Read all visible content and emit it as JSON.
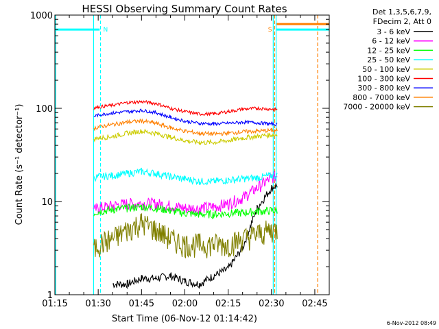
{
  "chart_data": {
    "type": "line",
    "title": "HESSI Observing Summary Count Rates",
    "xlabel": "Start Time (06-Nov-12 01:14:42)",
    "ylabel": "Count Rate (s⁻¹ detector⁻¹)",
    "y_scale": "log",
    "ylim": [
      1,
      1000
    ],
    "xlim_minutes": [
      75,
      170
    ],
    "x_ticks": [
      {
        "min": 75,
        "label": "01:15"
      },
      {
        "min": 90,
        "label": "01:30"
      },
      {
        "min": 105,
        "label": "01:45"
      },
      {
        "min": 120,
        "label": "02:00"
      },
      {
        "min": 135,
        "label": "02:15"
      },
      {
        "min": 150,
        "label": "02:30"
      },
      {
        "min": 165,
        "label": "02:45"
      }
    ],
    "y_ticks": [
      {
        "value": 1,
        "label": "1"
      },
      {
        "value": 10,
        "label": "10"
      },
      {
        "value": 100,
        "label": "100"
      },
      {
        "value": 1000,
        "label": "1000"
      }
    ],
    "legend_header": [
      "Det 1,3,5,6,7,9,",
      "FDecim 2, Att 0"
    ],
    "legend_position": "right",
    "grid": false,
    "x_minutes": [
      88.5,
      90,
      95,
      100,
      105,
      110,
      115,
      120,
      125,
      130,
      135,
      140,
      145,
      150,
      152
    ],
    "series": [
      {
        "name": "3 - 6 keV",
        "color": "#000000",
        "values": [
          null,
          null,
          1.3,
          1.3,
          1.5,
          1.5,
          1.6,
          1.4,
          1.3,
          1.6,
          1.9,
          3.2,
          8.5,
          14,
          15
        ]
      },
      {
        "name": "6 - 12 keV",
        "color": "#ff00ff",
        "values": [
          8,
          8.5,
          9,
          9.5,
          9.5,
          9.5,
          9,
          8.5,
          8.5,
          8.8,
          9.5,
          11,
          14,
          18,
          19
        ]
      },
      {
        "name": "12 - 25 keV",
        "color": "#00ff00",
        "values": [
          7.5,
          7.8,
          8.2,
          8.5,
          8.8,
          8.5,
          8,
          7.5,
          7.3,
          7.3,
          7.5,
          7.6,
          7.8,
          8,
          8
        ]
      },
      {
        "name": "25 - 50 keV",
        "color": "#00ffff",
        "values": [
          18,
          18.5,
          19,
          20,
          21,
          20,
          18.5,
          17.5,
          16.5,
          16.5,
          17,
          17.5,
          18,
          19,
          19
        ]
      },
      {
        "name": "50 - 100 keV",
        "color": "#cccc00",
        "values": [
          47,
          48,
          50,
          54,
          57,
          54,
          49,
          45,
          43,
          43,
          45,
          48,
          50,
          52,
          52
        ]
      },
      {
        "name": "100 - 300 keV",
        "color": "#ff0000",
        "values": [
          100,
          103,
          108,
          115,
          118,
          113,
          100,
          92,
          87,
          87,
          92,
          98,
          100,
          98,
          97
        ]
      },
      {
        "name": "300 - 800 keV",
        "color": "#0000ff",
        "values": [
          82,
          85,
          89,
          92,
          95,
          90,
          80,
          73,
          69,
          68,
          69,
          71,
          70,
          68,
          67
        ]
      },
      {
        "name": "800 - 7000 keV",
        "color": "#ff8000",
        "values": [
          61,
          63,
          67,
          71,
          73,
          69,
          62,
          57,
          54,
          53,
          54,
          56,
          57,
          58,
          58
        ]
      },
      {
        "name": "7000 - 20000 keV",
        "color": "#808000",
        "values": [
          3,
          3.5,
          4,
          5,
          6,
          5,
          4,
          3.5,
          3.5,
          3.5,
          3.5,
          4,
          4.5,
          5,
          5
        ]
      }
    ],
    "markers": [
      {
        "label": "N",
        "min": 90.8,
        "color": "#00ffff"
      },
      {
        "label": "S",
        "min": 150.7,
        "color": "#ff8000"
      }
    ],
    "level_bars": [
      {
        "color": "#00ffff",
        "value": 700,
        "from": 75,
        "to": 90.5
      },
      {
        "color": "#00ffff",
        "value": 700,
        "from": 151.8,
        "to": 170
      },
      {
        "color": "#ff8000",
        "value": 800,
        "from": 151.8,
        "to": 170
      }
    ],
    "vertical_lines": [
      {
        "min": 75.3,
        "color": "#00ffff",
        "dash": false
      },
      {
        "min": 88.4,
        "color": "#00ffff",
        "dash": false
      },
      {
        "min": 90.8,
        "color": "#00ffff",
        "dash": true
      },
      {
        "min": 150.6,
        "color": "#00ffff",
        "dash": false
      },
      {
        "min": 151.1,
        "color": "#ff8000",
        "dash": true
      },
      {
        "min": 151.6,
        "color": "#00ffff",
        "dash": false
      },
      {
        "min": 166,
        "color": "#ff8000",
        "dash": true
      }
    ],
    "timestamp": "6-Nov-2012 08:49"
  }
}
